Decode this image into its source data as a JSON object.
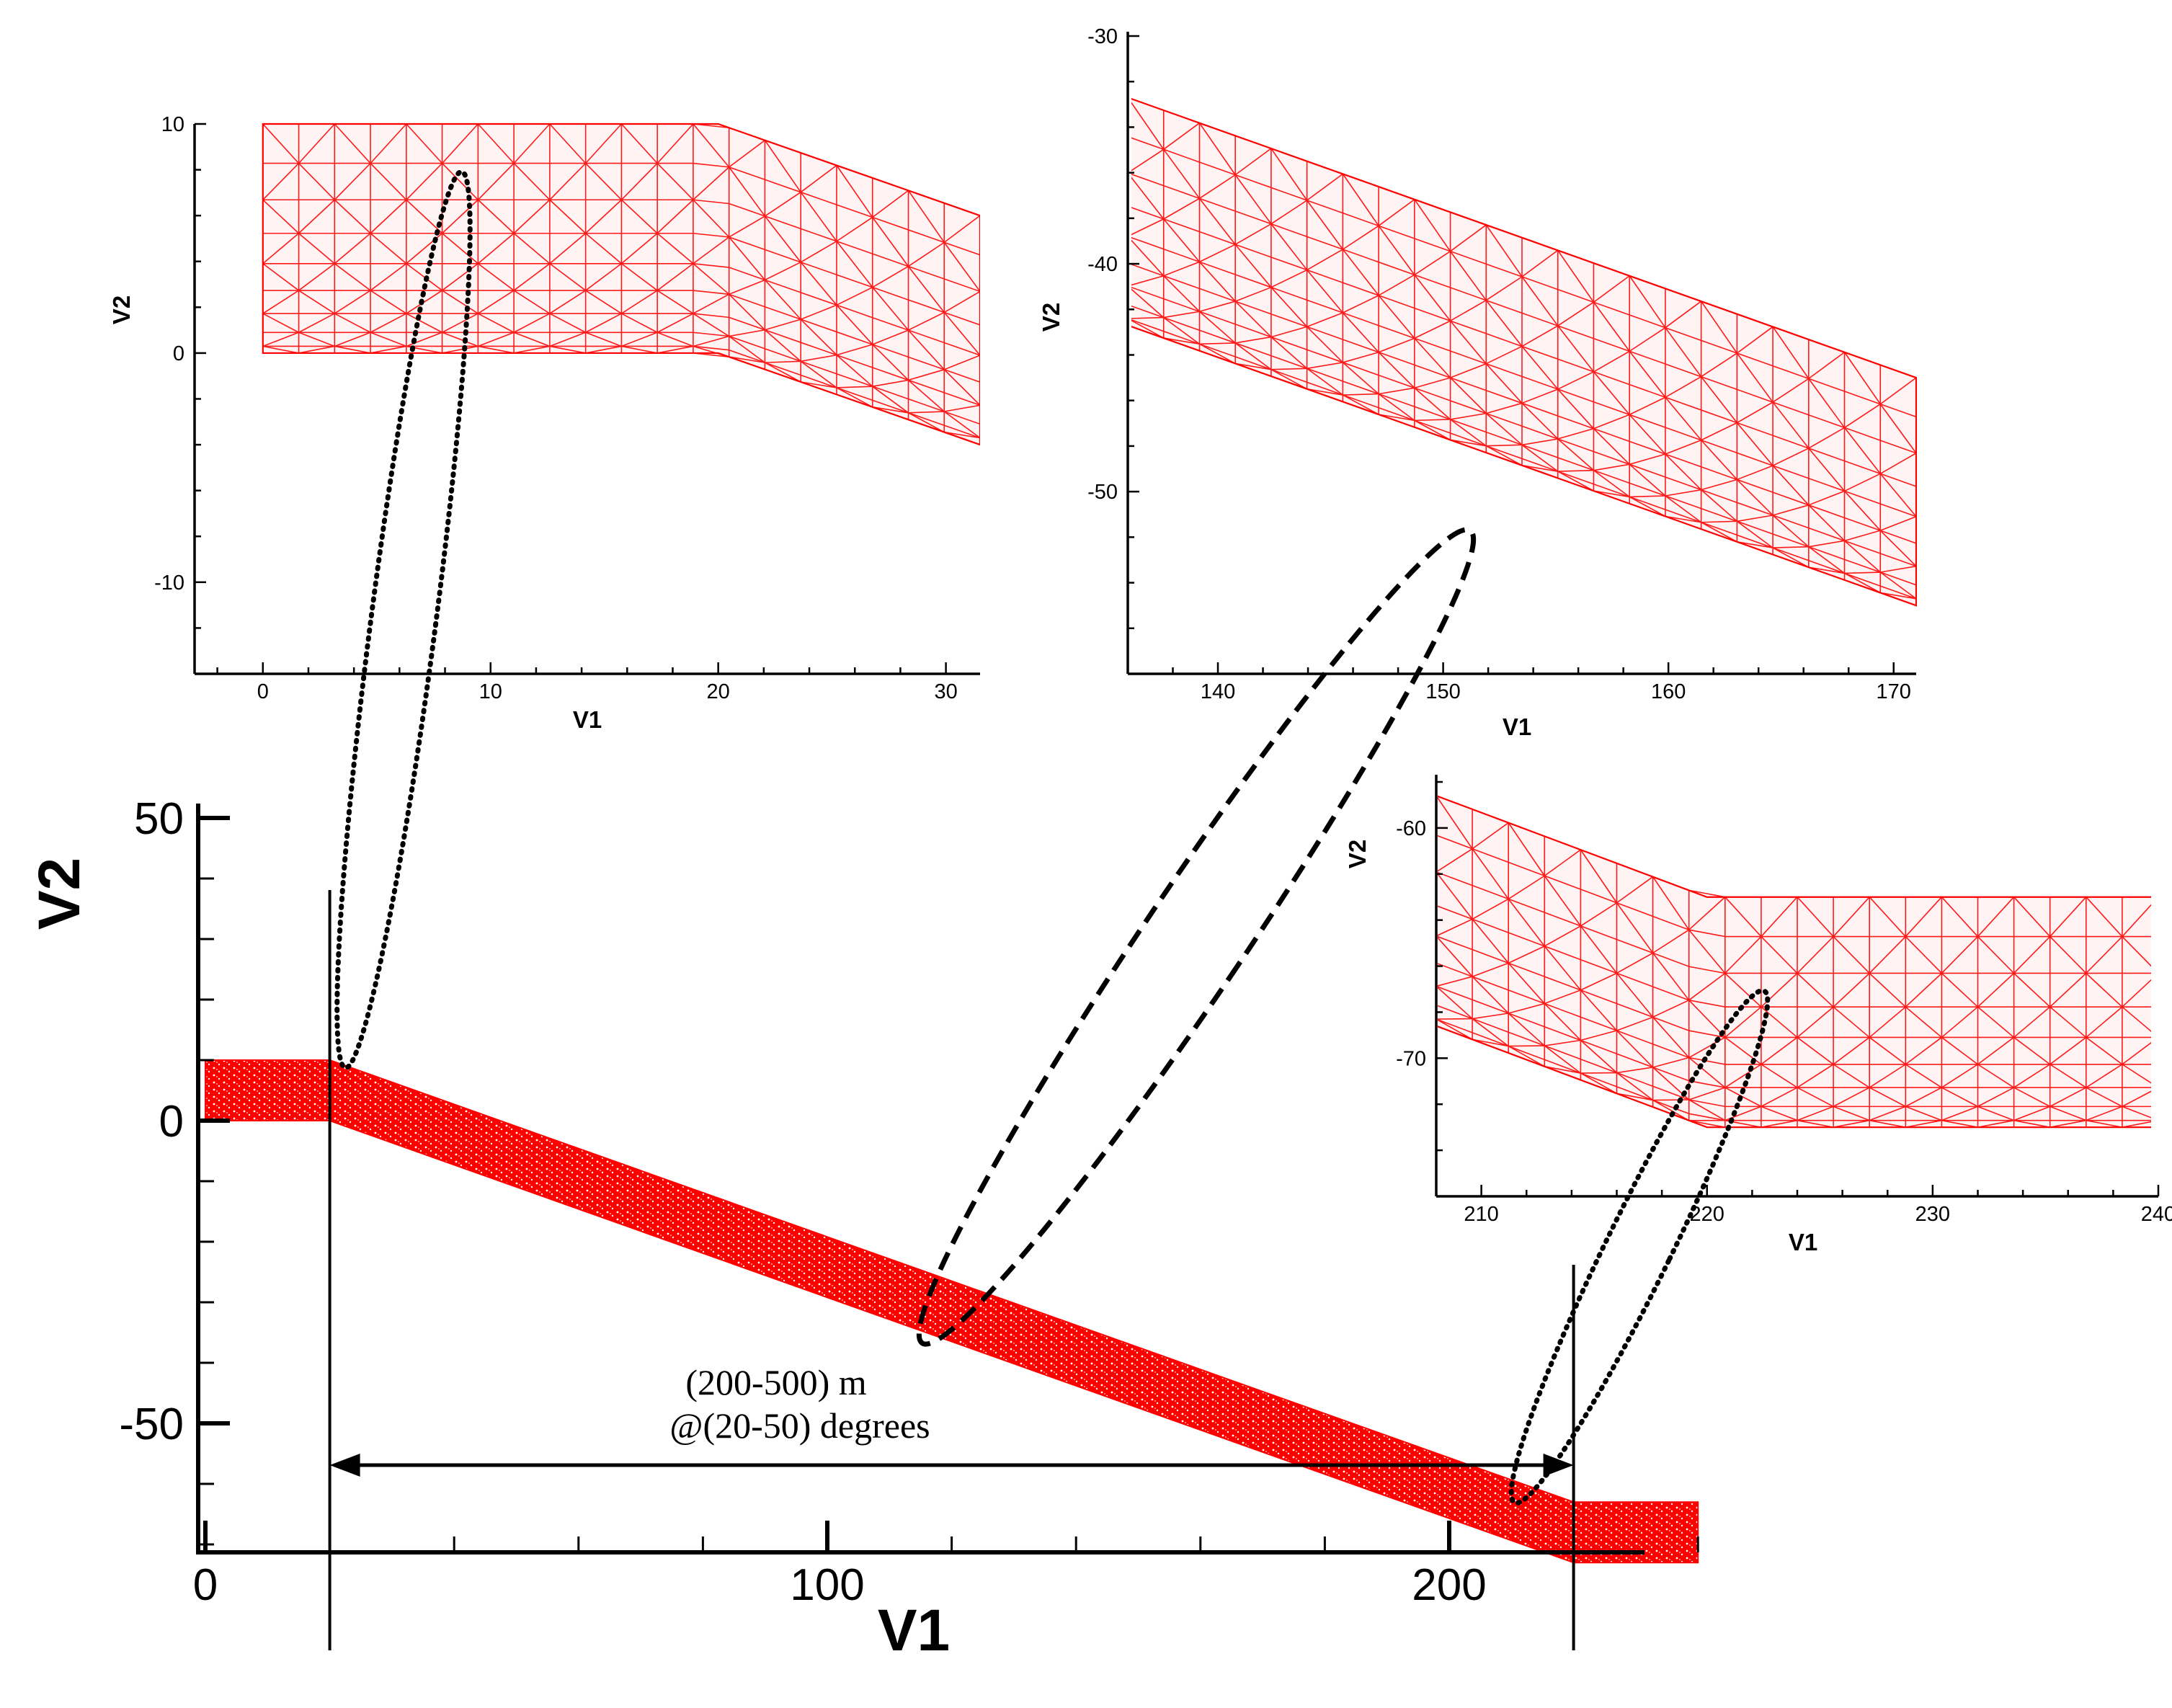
{
  "chart_data": [
    {
      "id": "main",
      "type": "area",
      "title": "",
      "xlabel": "V1",
      "ylabel": "V2",
      "xlim": [
        0,
        240
      ],
      "ylim": [
        -72,
        50
      ],
      "xticks": [
        0,
        100,
        200
      ],
      "yticks": [
        50,
        0,
        -50
      ],
      "xtick_labels": [
        "0",
        "100",
        "200"
      ],
      "ytick_labels": [
        "50",
        "0",
        "-50"
      ],
      "top_surface": {
        "x": [
          0,
          20,
          220,
          240
        ],
        "y": [
          10,
          10,
          -63,
          -63
        ]
      },
      "bottom_surface": {
        "x": [
          0,
          20,
          220,
          240
        ],
        "y": [
          0,
          0,
          -73,
          -73
        ]
      },
      "guide_lines_x": [
        20,
        220
      ],
      "dimension_arrow": {
        "x_from": 20,
        "x_to": 220,
        "y": -58
      },
      "annotations": [
        "(200-500) m",
        "@(20-50) degrees"
      ],
      "color": "#ff0000"
    },
    {
      "id": "inset-top-left",
      "type": "mesh",
      "xlabel": "V1",
      "ylabel": "V2",
      "xlim": [
        -3,
        31.5
      ],
      "ylim": [
        -14,
        10
      ],
      "xticks": [
        0,
        10,
        20,
        30
      ],
      "yticks": [
        10,
        0,
        -10
      ],
      "xtick_labels": [
        "0",
        "10",
        "20",
        "30"
      ],
      "ytick_labels": [
        "10",
        "0",
        "-10"
      ],
      "top_surface": {
        "x": [
          0,
          20,
          31.5
        ],
        "y": [
          10,
          10,
          6
        ]
      },
      "bottom_surface": {
        "x": [
          0,
          20,
          31.5
        ],
        "y": [
          0,
          0,
          -4
        ]
      },
      "color": "#ff0000"
    },
    {
      "id": "inset-top-right",
      "type": "mesh",
      "xlabel": "V1",
      "ylabel": "V2",
      "xlim": [
        136,
        171
      ],
      "ylim": [
        -58,
        -30
      ],
      "xticks": [
        140,
        150,
        160,
        170
      ],
      "yticks": [
        -30,
        -40,
        -50
      ],
      "xtick_labels": [
        "140",
        "150",
        "160",
        "170"
      ],
      "ytick_labels": [
        "-30",
        "-40",
        "-50"
      ],
      "top_surface": {
        "x": [
          136,
          171
        ],
        "y": [
          -32.7,
          -45
        ]
      },
      "bottom_surface": {
        "x": [
          136,
          171
        ],
        "y": [
          -42.7,
          -55
        ]
      },
      "color": "#ff0000"
    },
    {
      "id": "inset-right",
      "type": "mesh",
      "xlabel": "V1",
      "ylabel": "V2",
      "xlim": [
        208,
        240
      ],
      "ylim": [
        -76,
        -58
      ],
      "xticks": [
        210,
        220,
        230,
        240
      ],
      "yticks": [
        -60,
        -70
      ],
      "xtick_labels": [
        "210",
        "220",
        "230",
        "240"
      ],
      "ytick_labels": [
        "-60",
        "-70"
      ],
      "top_surface": {
        "x": [
          208,
          220,
          240
        ],
        "y": [
          -58.6,
          -63,
          -63
        ]
      },
      "bottom_surface": {
        "x": [
          208,
          220,
          240
        ],
        "y": [
          -68.6,
          -73,
          -73
        ]
      },
      "color": "#ff0000"
    }
  ],
  "colors": {
    "mesh": "#ff0000",
    "axes": "#000000",
    "background": "#ffffff"
  }
}
